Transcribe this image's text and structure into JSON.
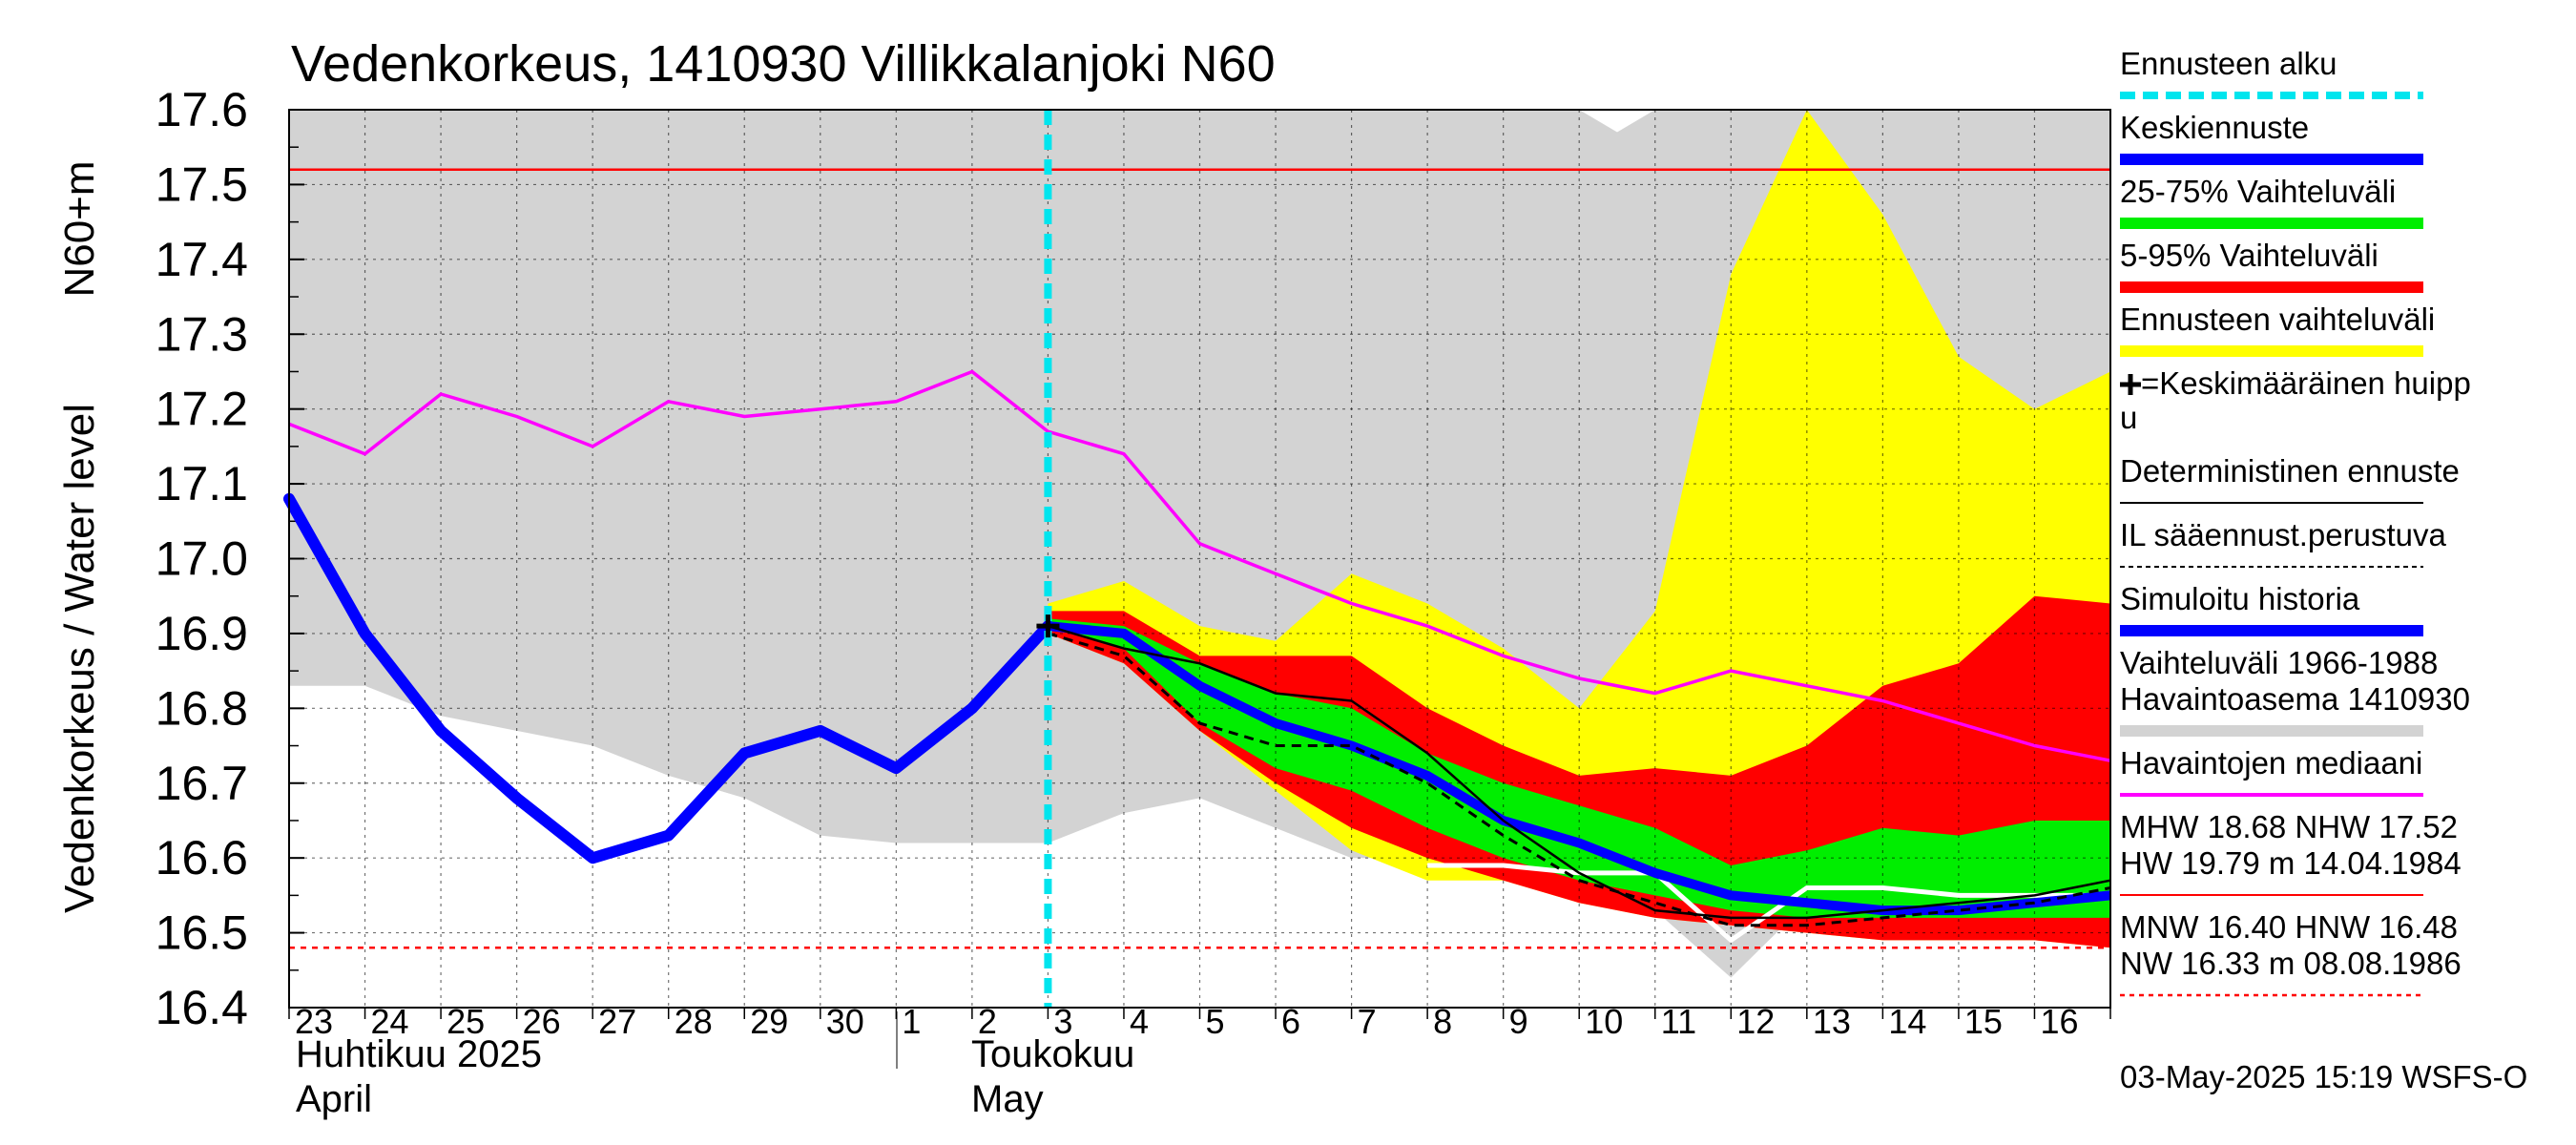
{
  "chart_data": {
    "type": "area",
    "title": "Vedenkorkeus, 1410930 Villikkalanjoki N60",
    "ylabel_primary": "Vedenkorkeus / Water level",
    "ylabel_secondary": "N60+m",
    "ylim": [
      16.4,
      17.6
    ],
    "ytick_labels": [
      "16.4",
      "16.5",
      "16.6",
      "16.7",
      "16.8",
      "16.9",
      "17.0",
      "17.1",
      "17.2",
      "17.3",
      "17.4",
      "17.5",
      "17.6"
    ],
    "x_start": "2025-04-23",
    "x_end": "2025-05-17",
    "x_day_labels": [
      "23",
      "24",
      "25",
      "26",
      "27",
      "28",
      "29",
      "30",
      "1",
      "2",
      "3",
      "4",
      "5",
      "6",
      "7",
      "8",
      "9",
      "10",
      "11",
      "12",
      "13",
      "14",
      "15",
      "16"
    ],
    "month_labels": [
      {
        "name_fi": "Huhtikuu  2025",
        "name_en": "April"
      },
      {
        "name_fi": "Toukokuu",
        "name_en": "May"
      }
    ],
    "grid": true,
    "forecast_start": "2025-05-03",
    "hlines": {
      "MHW": 17.52,
      "MNW": 16.48
    },
    "series": {
      "history_range_upper": {
        "x": [
          "2025-04-23",
          "2025-05-03",
          "2025-05-08",
          "2025-05-09",
          "2025-05-10",
          "2025-05-10.5",
          "2025-05-11",
          "2025-05-12",
          "2025-05-13",
          "2025-05-14",
          "2025-05-14.5",
          "2025-05-15",
          "2025-05-16",
          "2025-05-17"
        ],
        "values": [
          17.6,
          17.6,
          17.6,
          17.6,
          17.6,
          17.57,
          17.6,
          17.6,
          17.6,
          17.6,
          17.6,
          17.6,
          17.6,
          17.6
        ]
      },
      "history_range_lower": {
        "x": [
          "2025-04-23",
          "2025-04-24",
          "2025-04-25",
          "2025-04-26",
          "2025-04-27",
          "2025-04-28",
          "2025-04-29",
          "2025-04-30",
          "2025-05-01",
          "2025-05-02",
          "2025-05-03",
          "2025-05-04",
          "2025-05-05",
          "2025-05-06",
          "2025-05-07",
          "2025-05-08",
          "2025-05-09",
          "2025-05-10",
          "2025-05-11",
          "2025-05-12",
          "2025-05-13",
          "2025-05-14",
          "2025-05-15",
          "2025-05-16",
          "2025-05-17"
        ],
        "values": [
          16.83,
          16.83,
          16.79,
          16.77,
          16.75,
          16.71,
          16.68,
          16.63,
          16.62,
          16.62,
          16.62,
          16.66,
          16.68,
          16.64,
          16.6,
          16.6,
          16.58,
          16.58,
          16.53,
          16.44,
          16.54,
          16.53,
          16.54,
          16.54,
          16.54
        ]
      },
      "forecast_range": {
        "x": [
          "2025-05-03",
          "2025-05-04",
          "2025-05-05",
          "2025-05-06",
          "2025-05-07",
          "2025-05-08",
          "2025-05-09",
          "2025-05-10",
          "2025-05-11",
          "2025-05-12",
          "2025-05-13",
          "2025-05-14",
          "2025-05-15",
          "2025-05-16",
          "2025-05-17"
        ],
        "upper": [
          16.94,
          16.97,
          16.91,
          16.89,
          16.98,
          16.94,
          16.88,
          16.8,
          16.93,
          17.38,
          17.6,
          17.46,
          17.27,
          17.2,
          17.25
        ],
        "lower": [
          16.9,
          16.86,
          16.77,
          16.69,
          16.61,
          16.57,
          16.57,
          16.54,
          16.52,
          16.51,
          16.5,
          16.49,
          16.49,
          16.49,
          16.48
        ]
      },
      "p5_95": {
        "x": [
          "2025-05-03",
          "2025-05-04",
          "2025-05-05",
          "2025-05-06",
          "2025-05-07",
          "2025-05-08",
          "2025-05-09",
          "2025-05-10",
          "2025-05-11",
          "2025-05-12",
          "2025-05-13",
          "2025-05-14",
          "2025-05-15",
          "2025-05-16",
          "2025-05-17"
        ],
        "upper": [
          16.93,
          16.93,
          16.87,
          16.87,
          16.87,
          16.8,
          16.75,
          16.71,
          16.72,
          16.71,
          16.75,
          16.83,
          16.86,
          16.95,
          16.94
        ],
        "lower": [
          16.9,
          16.86,
          16.77,
          16.7,
          16.64,
          16.6,
          16.57,
          16.54,
          16.52,
          16.51,
          16.5,
          16.49,
          16.49,
          16.49,
          16.48
        ]
      },
      "p25_75": {
        "x": [
          "2025-05-03",
          "2025-05-04",
          "2025-05-05",
          "2025-05-06",
          "2025-05-07",
          "2025-05-08",
          "2025-05-09",
          "2025-05-10",
          "2025-05-11",
          "2025-05-12",
          "2025-05-13",
          "2025-05-14",
          "2025-05-15",
          "2025-05-16",
          "2025-05-17"
        ],
        "upper": [
          16.92,
          16.91,
          16.86,
          16.82,
          16.8,
          16.74,
          16.7,
          16.67,
          16.64,
          16.59,
          16.61,
          16.64,
          16.63,
          16.65,
          16.65
        ],
        "lower": [
          16.91,
          16.88,
          16.78,
          16.72,
          16.69,
          16.64,
          16.6,
          16.57,
          16.55,
          16.53,
          16.52,
          16.52,
          16.52,
          16.52,
          16.52
        ]
      },
      "simulated_history": {
        "x": [
          "2025-04-23",
          "2025-04-24",
          "2025-04-25",
          "2025-04-26",
          "2025-04-27",
          "2025-04-28",
          "2025-04-29",
          "2025-04-30",
          "2025-05-01",
          "2025-05-02",
          "2025-05-03"
        ],
        "values": [
          17.08,
          16.9,
          16.77,
          16.68,
          16.6,
          16.63,
          16.74,
          16.77,
          16.72,
          16.8,
          16.91
        ]
      },
      "mean_forecast": {
        "x": [
          "2025-05-03",
          "2025-05-04",
          "2025-05-05",
          "2025-05-06",
          "2025-05-07",
          "2025-05-08",
          "2025-05-09",
          "2025-05-10",
          "2025-05-11",
          "2025-05-12",
          "2025-05-13",
          "2025-05-14",
          "2025-05-15",
          "2025-05-16",
          "2025-05-17"
        ],
        "values": [
          16.91,
          16.9,
          16.83,
          16.78,
          16.75,
          16.71,
          16.65,
          16.62,
          16.58,
          16.55,
          16.54,
          16.53,
          16.53,
          16.54,
          16.55
        ]
      },
      "deterministic": {
        "x": [
          "2025-05-03",
          "2025-05-04",
          "2025-05-05",
          "2025-05-06",
          "2025-05-07",
          "2025-05-08",
          "2025-05-09",
          "2025-05-10",
          "2025-05-11",
          "2025-05-12",
          "2025-05-13",
          "2025-05-14",
          "2025-05-15",
          "2025-05-16",
          "2025-05-17"
        ],
        "values": [
          16.91,
          16.88,
          16.86,
          16.82,
          16.81,
          16.74,
          16.65,
          16.58,
          16.53,
          16.52,
          16.52,
          16.53,
          16.54,
          16.55,
          16.57
        ]
      },
      "il_forecast": {
        "x": [
          "2025-05-03",
          "2025-05-04",
          "2025-05-05",
          "2025-05-06",
          "2025-05-07",
          "2025-05-08",
          "2025-05-09",
          "2025-05-10",
          "2025-05-11",
          "2025-05-12",
          "2025-05-13",
          "2025-05-14",
          "2025-05-15",
          "2025-05-16",
          "2025-05-17"
        ],
        "values": [
          16.9,
          16.87,
          16.78,
          16.75,
          16.75,
          16.7,
          16.63,
          16.57,
          16.54,
          16.51,
          16.51,
          16.52,
          16.53,
          16.54,
          16.56
        ]
      },
      "median": {
        "x": [
          "2025-04-23",
          "2025-04-24",
          "2025-04-25",
          "2025-04-26",
          "2025-04-27",
          "2025-04-28",
          "2025-04-29",
          "2025-04-30",
          "2025-05-01",
          "2025-05-02",
          "2025-05-03",
          "2025-05-04",
          "2025-05-05",
          "2025-05-06",
          "2025-05-07",
          "2025-05-08",
          "2025-05-09",
          "2025-05-10",
          "2025-05-11",
          "2025-05-12",
          "2025-05-13",
          "2025-05-14",
          "2025-05-15",
          "2025-05-16",
          "2025-05-17"
        ],
        "values": [
          17.18,
          17.14,
          17.22,
          17.19,
          17.15,
          17.21,
          17.19,
          17.2,
          17.21,
          17.25,
          17.17,
          17.14,
          17.02,
          16.98,
          16.94,
          16.91,
          16.87,
          16.84,
          16.82,
          16.85,
          16.83,
          16.81,
          16.78,
          16.75,
          16.73
        ]
      },
      "white_line": {
        "x": [
          "2025-05-08",
          "2025-05-09",
          "2025-05-10",
          "2025-05-11",
          "2025-05-12",
          "2025-05-13",
          "2025-05-14",
          "2025-05-15",
          "2025-05-16",
          "2025-05-17"
        ],
        "values": [
          16.59,
          16.59,
          16.58,
          16.58,
          16.49,
          16.56,
          16.56,
          16.55,
          16.55,
          16.55
        ]
      },
      "mean_peak": {
        "x": "2025-05-03",
        "y": 16.91
      }
    },
    "legend": [
      {
        "key": "forecast_start",
        "label": "Ennusteen alku",
        "color": "#00e5ee",
        "style": "dashed-thick"
      },
      {
        "key": "mean_forecast",
        "label": "Keskiennuste",
        "color": "#0000ff",
        "style": "thick"
      },
      {
        "key": "p25_75",
        "label": "25-75% Vaihteluväli",
        "color": "#00ee00",
        "style": "thick"
      },
      {
        "key": "p5_95",
        "label": "5-95% Vaihteluväli",
        "color": "#ff0000",
        "style": "thick"
      },
      {
        "key": "forecast_range",
        "label": "Ennusteen vaihteluväli",
        "color": "#ffff00",
        "style": "thick"
      },
      {
        "key": "mean_peak",
        "label_line1": "=Keskimääräinen huipp",
        "label_line2": "u",
        "color": "#000000",
        "style": "marker"
      },
      {
        "key": "deterministic",
        "label": "Deterministinen ennuste",
        "color": "#000000",
        "style": "thin"
      },
      {
        "key": "il_forecast",
        "label": "IL sääennust.perustuva",
        "color": "#000000",
        "style": "dashed"
      },
      {
        "key": "simulated_history",
        "label": "Simuloitu historia",
        "color": "#0000ff",
        "style": "thick"
      },
      {
        "key": "history_range",
        "label_line1": "Vaihteluväli 1966-1988",
        "label_line2": " Havaintoasema 1410930",
        "color": "#d3d3d3",
        "style": "thick"
      },
      {
        "key": "median",
        "label": "Havaintojen mediaani",
        "color": "#ff00ff",
        "style": "medium"
      },
      {
        "key": "mhw",
        "label_line1": "MHW  18.68 NHW  17.52",
        "label_line2": "HW  19.79 m 14.04.1984",
        "color": "#ff0000",
        "style": "thin"
      },
      {
        "key": "mnw",
        "label_line1": "MNW  16.40 HNW  16.48",
        "label_line2": "NW  16.33 m 08.08.1986",
        "color": "#ff0000",
        "style": "dotted"
      }
    ],
    "footer": "03-May-2025 15:19 WSFS-O",
    "colors": {
      "history_range": "#d3d3d3",
      "forecast_range": "#ffff00",
      "p5_95": "#ff0000",
      "p25_75": "#00ee00",
      "mean": "#0000ff",
      "median": "#ff00ff",
      "forecast_start": "#00e5ee",
      "hline": "#ff0000",
      "grid": "#000000"
    }
  }
}
